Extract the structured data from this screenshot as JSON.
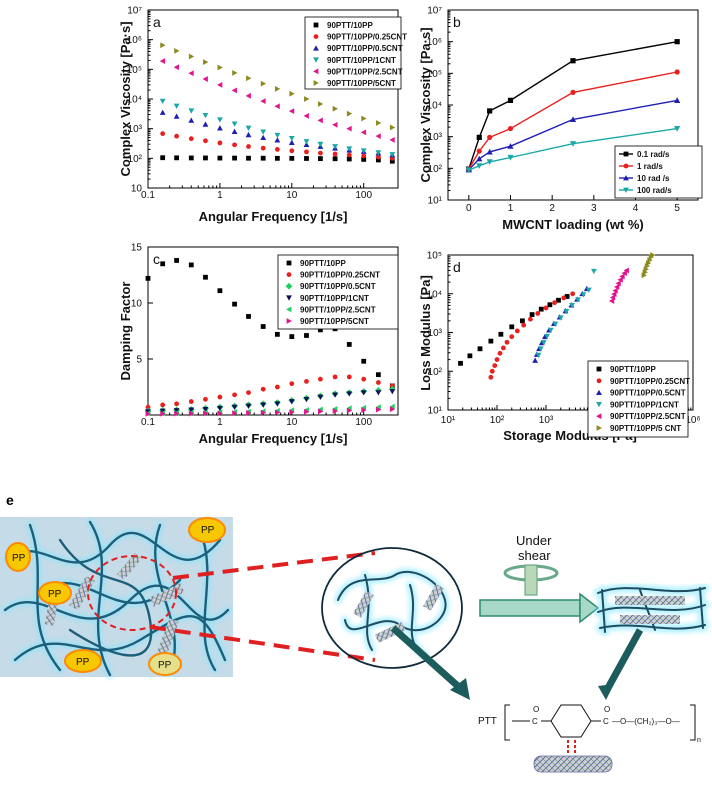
{
  "colors": {
    "black": "#000000",
    "red": "#e8201e",
    "blue": "#1f1fb4",
    "teal": "#1aa7a7",
    "magenta": "#e3138f",
    "olive": "#8a8a1e",
    "green": "#21d060",
    "navy": "#11115a"
  },
  "chart_data": [
    {
      "id": "a",
      "type": "scatter",
      "panel_label": "a",
      "xlabel": "Angular Frequency [1/s]",
      "ylabel": "Complex Viscosity [Pa·s]",
      "xscale": "log",
      "yscale": "log",
      "xlim": [
        0.1,
        300
      ],
      "ylim": [
        10,
        10000000
      ],
      "xticks": [
        "0.1",
        "1",
        "10",
        "100"
      ],
      "yticks": [
        "10",
        "10²",
        "10³",
        "10⁴",
        "10⁵",
        "10⁶",
        "10⁷"
      ],
      "legend": "top-right",
      "x": [
        0.16,
        0.25,
        0.4,
        0.63,
        1,
        1.6,
        2.5,
        4,
        6.3,
        10,
        16,
        25,
        40,
        63,
        100,
        160,
        250
      ],
      "series": [
        {
          "name": "90PTT/10PP",
          "color": "#000000",
          "marker": "square",
          "values": [
            105,
            104,
            103,
            103,
            102,
            102,
            101,
            101,
            100,
            100,
            99,
            98,
            97,
            95,
            92,
            88,
            80
          ]
        },
        {
          "name": "90PTT/10PP/0.25CNT",
          "color": "#e8201e",
          "marker": "circle",
          "values": [
            680,
            560,
            460,
            390,
            330,
            285,
            250,
            220,
            200,
            180,
            165,
            150,
            140,
            130,
            120,
            110,
            100
          ]
        },
        {
          "name": "90PTT/10PP/0.5CNT",
          "color": "#1f1fb4",
          "marker": "triangle",
          "values": [
            3500,
            2600,
            1900,
            1400,
            1050,
            800,
            620,
            500,
            410,
            340,
            290,
            250,
            220,
            190,
            170,
            150,
            130
          ]
        },
        {
          "name": "90PTT/10PP/1CNT",
          "color": "#1aa7a7",
          "marker": "triangle-down",
          "values": [
            8500,
            5800,
            4000,
            2800,
            2000,
            1450,
            1050,
            780,
            600,
            470,
            370,
            300,
            250,
            210,
            180,
            155,
            135
          ]
        },
        {
          "name": "90PTT/10PP/2.5CNT",
          "color": "#e3138f",
          "marker": "triangle-left",
          "values": [
            190000,
            118000,
            74000,
            47000,
            30000,
            19500,
            12800,
            8500,
            5700,
            3900,
            2700,
            1900,
            1350,
            1000,
            750,
            560,
            420
          ]
        },
        {
          "name": "90PTT/10PP/5CNT",
          "color": "#8a8a1e",
          "marker": "triangle-right",
          "values": [
            650000,
            420000,
            270000,
            175000,
            115000,
            76000,
            50000,
            33000,
            22000,
            15000,
            10000,
            6800,
            4700,
            3200,
            2200,
            1550,
            1100
          ]
        }
      ]
    },
    {
      "id": "b",
      "type": "line",
      "panel_label": "b",
      "xlabel": "MWCNT loading (wt %)",
      "ylabel": "Complex Viscosity [Pa·s]",
      "yscale": "log",
      "xlim": [
        -0.5,
        5.5
      ],
      "ylim": [
        10,
        10000000
      ],
      "xticks": [
        "0",
        "1",
        "2",
        "3",
        "4",
        "5"
      ],
      "yticks": [
        "10¹",
        "10²",
        "10³",
        "10⁴",
        "10⁵",
        "10⁶",
        "10⁷"
      ],
      "legend": "bottom-right",
      "x": [
        0,
        0.25,
        0.5,
        1,
        2.5,
        5
      ],
      "series": [
        {
          "name": "0.1 rad/s",
          "color": "#000000",
          "marker": "square",
          "values": [
            95,
            950,
            6500,
            14000,
            250000,
            1000000
          ]
        },
        {
          "name": "1 rad/s",
          "color": "#e8201e",
          "marker": "circle",
          "values": [
            95,
            350,
            950,
            1800,
            25000,
            110000
          ]
        },
        {
          "name": "10 rad /s",
          "color": "#1f1fb4",
          "marker": "triangle",
          "values": [
            90,
            200,
            330,
            500,
            3500,
            14000
          ]
        },
        {
          "name": "100 rad/s",
          "color": "#1aa7a7",
          "marker": "triangle-down",
          "values": [
            88,
            120,
            160,
            220,
            600,
            1800
          ]
        }
      ]
    },
    {
      "id": "c",
      "type": "scatter",
      "panel_label": "c",
      "xlabel": "Angular Frequency [1/s]",
      "ylabel": "Damping Factor",
      "xscale": "log",
      "yscale": "linear",
      "xlim": [
        0.1,
        300
      ],
      "ylim": [
        0,
        15
      ],
      "xticks": [
        "0.1",
        "1",
        "10",
        "100"
      ],
      "yticks": [
        "5",
        "10",
        "15"
      ],
      "legend": "top-right",
      "x": [
        0.1,
        0.16,
        0.25,
        0.4,
        0.63,
        1,
        1.6,
        2.5,
        4,
        6.3,
        10,
        16,
        25,
        40,
        63,
        100,
        160,
        250
      ],
      "series": [
        {
          "name": "90PTT/10PP",
          "color": "#000000",
          "marker": "square",
          "values": [
            12.2,
            13.5,
            13.8,
            13.4,
            12.3,
            11.1,
            9.9,
            8.8,
            7.9,
            7.2,
            7.0,
            7.1,
            7.6,
            7.7,
            6.3,
            4.8,
            3.6,
            2.6
          ]
        },
        {
          "name": "90PTT/10PP/0.25CNT",
          "color": "#e8201e",
          "marker": "circle",
          "values": [
            0.7,
            0.9,
            1.0,
            1.2,
            1.4,
            1.6,
            1.8,
            2.0,
            2.3,
            2.5,
            2.8,
            3.0,
            3.2,
            3.4,
            3.4,
            3.2,
            2.9,
            2.6
          ]
        },
        {
          "name": "90PTT/10PP/0.5CNT",
          "color": "#21d060",
          "marker": "diamond",
          "values": [
            0.35,
            0.4,
            0.45,
            0.5,
            0.6,
            0.7,
            0.8,
            0.9,
            1.0,
            1.1,
            1.3,
            1.5,
            1.7,
            1.9,
            2.0,
            2.1,
            2.2,
            2.3
          ]
        },
        {
          "name": "90PTT/10PP/1CNT",
          "color": "#11115a",
          "marker": "triangle-down",
          "values": [
            0.3,
            0.35,
            0.4,
            0.45,
            0.5,
            0.6,
            0.7,
            0.8,
            0.9,
            1.0,
            1.2,
            1.4,
            1.6,
            1.8,
            1.9,
            2.0,
            2.0,
            2.1
          ]
        },
        {
          "name": "90PTT/10PP/2.5CNT",
          "color": "#21d060",
          "marker": "triangle-left",
          "values": [
            0.15,
            0.17,
            0.19,
            0.21,
            0.23,
            0.25,
            0.28,
            0.31,
            0.34,
            0.38,
            0.42,
            0.46,
            0.5,
            0.55,
            0.6,
            0.65,
            0.7,
            0.75
          ]
        },
        {
          "name": "90PTT/10PP/5CNT",
          "color": "#e3138f",
          "marker": "triangle-right",
          "values": [
            0.1,
            0.11,
            0.12,
            0.13,
            0.14,
            0.15,
            0.17,
            0.19,
            0.21,
            0.23,
            0.26,
            0.29,
            0.32,
            0.36,
            0.4,
            0.44,
            0.48,
            0.52
          ]
        }
      ]
    },
    {
      "id": "d",
      "type": "scatter",
      "panel_label": "d",
      "xlabel": "Storage Modulus [Pa]",
      "ylabel": "Loss Modulus [Pa]",
      "xscale": "log",
      "yscale": "log",
      "xlim": [
        10,
        1000000
      ],
      "ylim": [
        10,
        100000
      ],
      "xticks": [
        "10¹",
        "10²",
        "10³",
        "10⁴",
        "10⁵",
        "10⁶"
      ],
      "yticks": [
        "10¹",
        "10²",
        "10³",
        "10⁴",
        "10⁵"
      ],
      "legend": "bottom-right",
      "series": [
        {
          "name": "90PTT/10PP",
          "color": "#000000",
          "marker": "square",
          "points": [
            [
              18,
              160
            ],
            [
              28,
              250
            ],
            [
              45,
              380
            ],
            [
              75,
              600
            ],
            [
              120,
              900
            ],
            [
              200,
              1400
            ],
            [
              330,
              2000
            ],
            [
              520,
              2900
            ],
            [
              800,
              4000
            ],
            [
              1200,
              5200
            ],
            [
              1800,
              6800
            ],
            [
              2700,
              8500
            ]
          ]
        },
        {
          "name": "90PTT/10PP/0.25CNT",
          "color": "#e8201e",
          "marker": "circle",
          "points": [
            [
              75,
              70
            ],
            [
              80,
              100
            ],
            [
              90,
              140
            ],
            [
              100,
              200
            ],
            [
              115,
              290
            ],
            [
              135,
              400
            ],
            [
              160,
              560
            ],
            [
              200,
              780
            ],
            [
              260,
              1100
            ],
            [
              350,
              1550
            ],
            [
              480,
              2200
            ],
            [
              680,
              3100
            ],
            [
              1000,
              4300
            ],
            [
              1500,
              5900
            ],
            [
              2300,
              7800
            ],
            [
              3500,
              10000
            ]
          ]
        },
        {
          "name": "90PTT/10PP/0.5CNT",
          "color": "#1f1fb4",
          "marker": "triangle",
          "points": [
            [
              600,
              190
            ],
            [
              650,
              270
            ],
            [
              720,
              380
            ],
            [
              820,
              540
            ],
            [
              950,
              780
            ],
            [
              1150,
              1150
            ],
            [
              1450,
              1700
            ],
            [
              1900,
              2500
            ],
            [
              2500,
              3600
            ],
            [
              3300,
              5100
            ],
            [
              4300,
              7200
            ],
            [
              5500,
              10000
            ],
            [
              6800,
              13500
            ]
          ]
        },
        {
          "name": "90PTT/10PP/1CNT",
          "color": "#1aa7a7",
          "marker": "triangle-down",
          "points": [
            [
              700,
              260
            ],
            [
              780,
              380
            ],
            [
              900,
              550
            ],
            [
              1050,
              800
            ],
            [
              1250,
              1150
            ],
            [
              1550,
              1650
            ],
            [
              2000,
              2400
            ],
            [
              2600,
              3500
            ],
            [
              3400,
              5000
            ],
            [
              4500,
              7000
            ],
            [
              5800,
              9500
            ],
            [
              7500,
              12500
            ],
            [
              9500,
              38000
            ]
          ]
        },
        {
          "name": "90PTT/10PP/2.5CNT",
          "color": "#e3138f",
          "marker": "triangle-left",
          "points": [
            [
              22000,
              6500
            ],
            [
              23000,
              8000
            ],
            [
              24500,
              9800
            ],
            [
              26000,
              12000
            ],
            [
              28000,
              15000
            ],
            [
              30000,
              18500
            ],
            [
              33000,
              23000
            ],
            [
              36000,
              28000
            ],
            [
              40000,
              34000
            ],
            [
              44000,
              40000
            ]
          ]
        },
        {
          "name": "90PTT/10PP/5 CNT",
          "color": "#8a8a1e",
          "marker": "triangle-right",
          "points": [
            [
              100000,
              30000
            ],
            [
              105000,
              36000
            ],
            [
              110000,
              43000
            ],
            [
              116000,
              52000
            ],
            [
              123000,
              62000
            ],
            [
              131000,
              74000
            ],
            [
              140000,
              88000
            ],
            [
              150000,
              100000
            ]
          ]
        }
      ]
    }
  ],
  "schematic": {
    "panel_label": "e",
    "pp_labels": [
      "PP",
      "PP",
      "PP",
      "PP",
      "PP"
    ],
    "under_shear": [
      "Under",
      "shear"
    ],
    "formula": {
      "prefix": "PTT",
      "chain": "—O—(CH₂)₃—O—",
      "n": "n",
      "carbonyl": "O"
    }
  }
}
